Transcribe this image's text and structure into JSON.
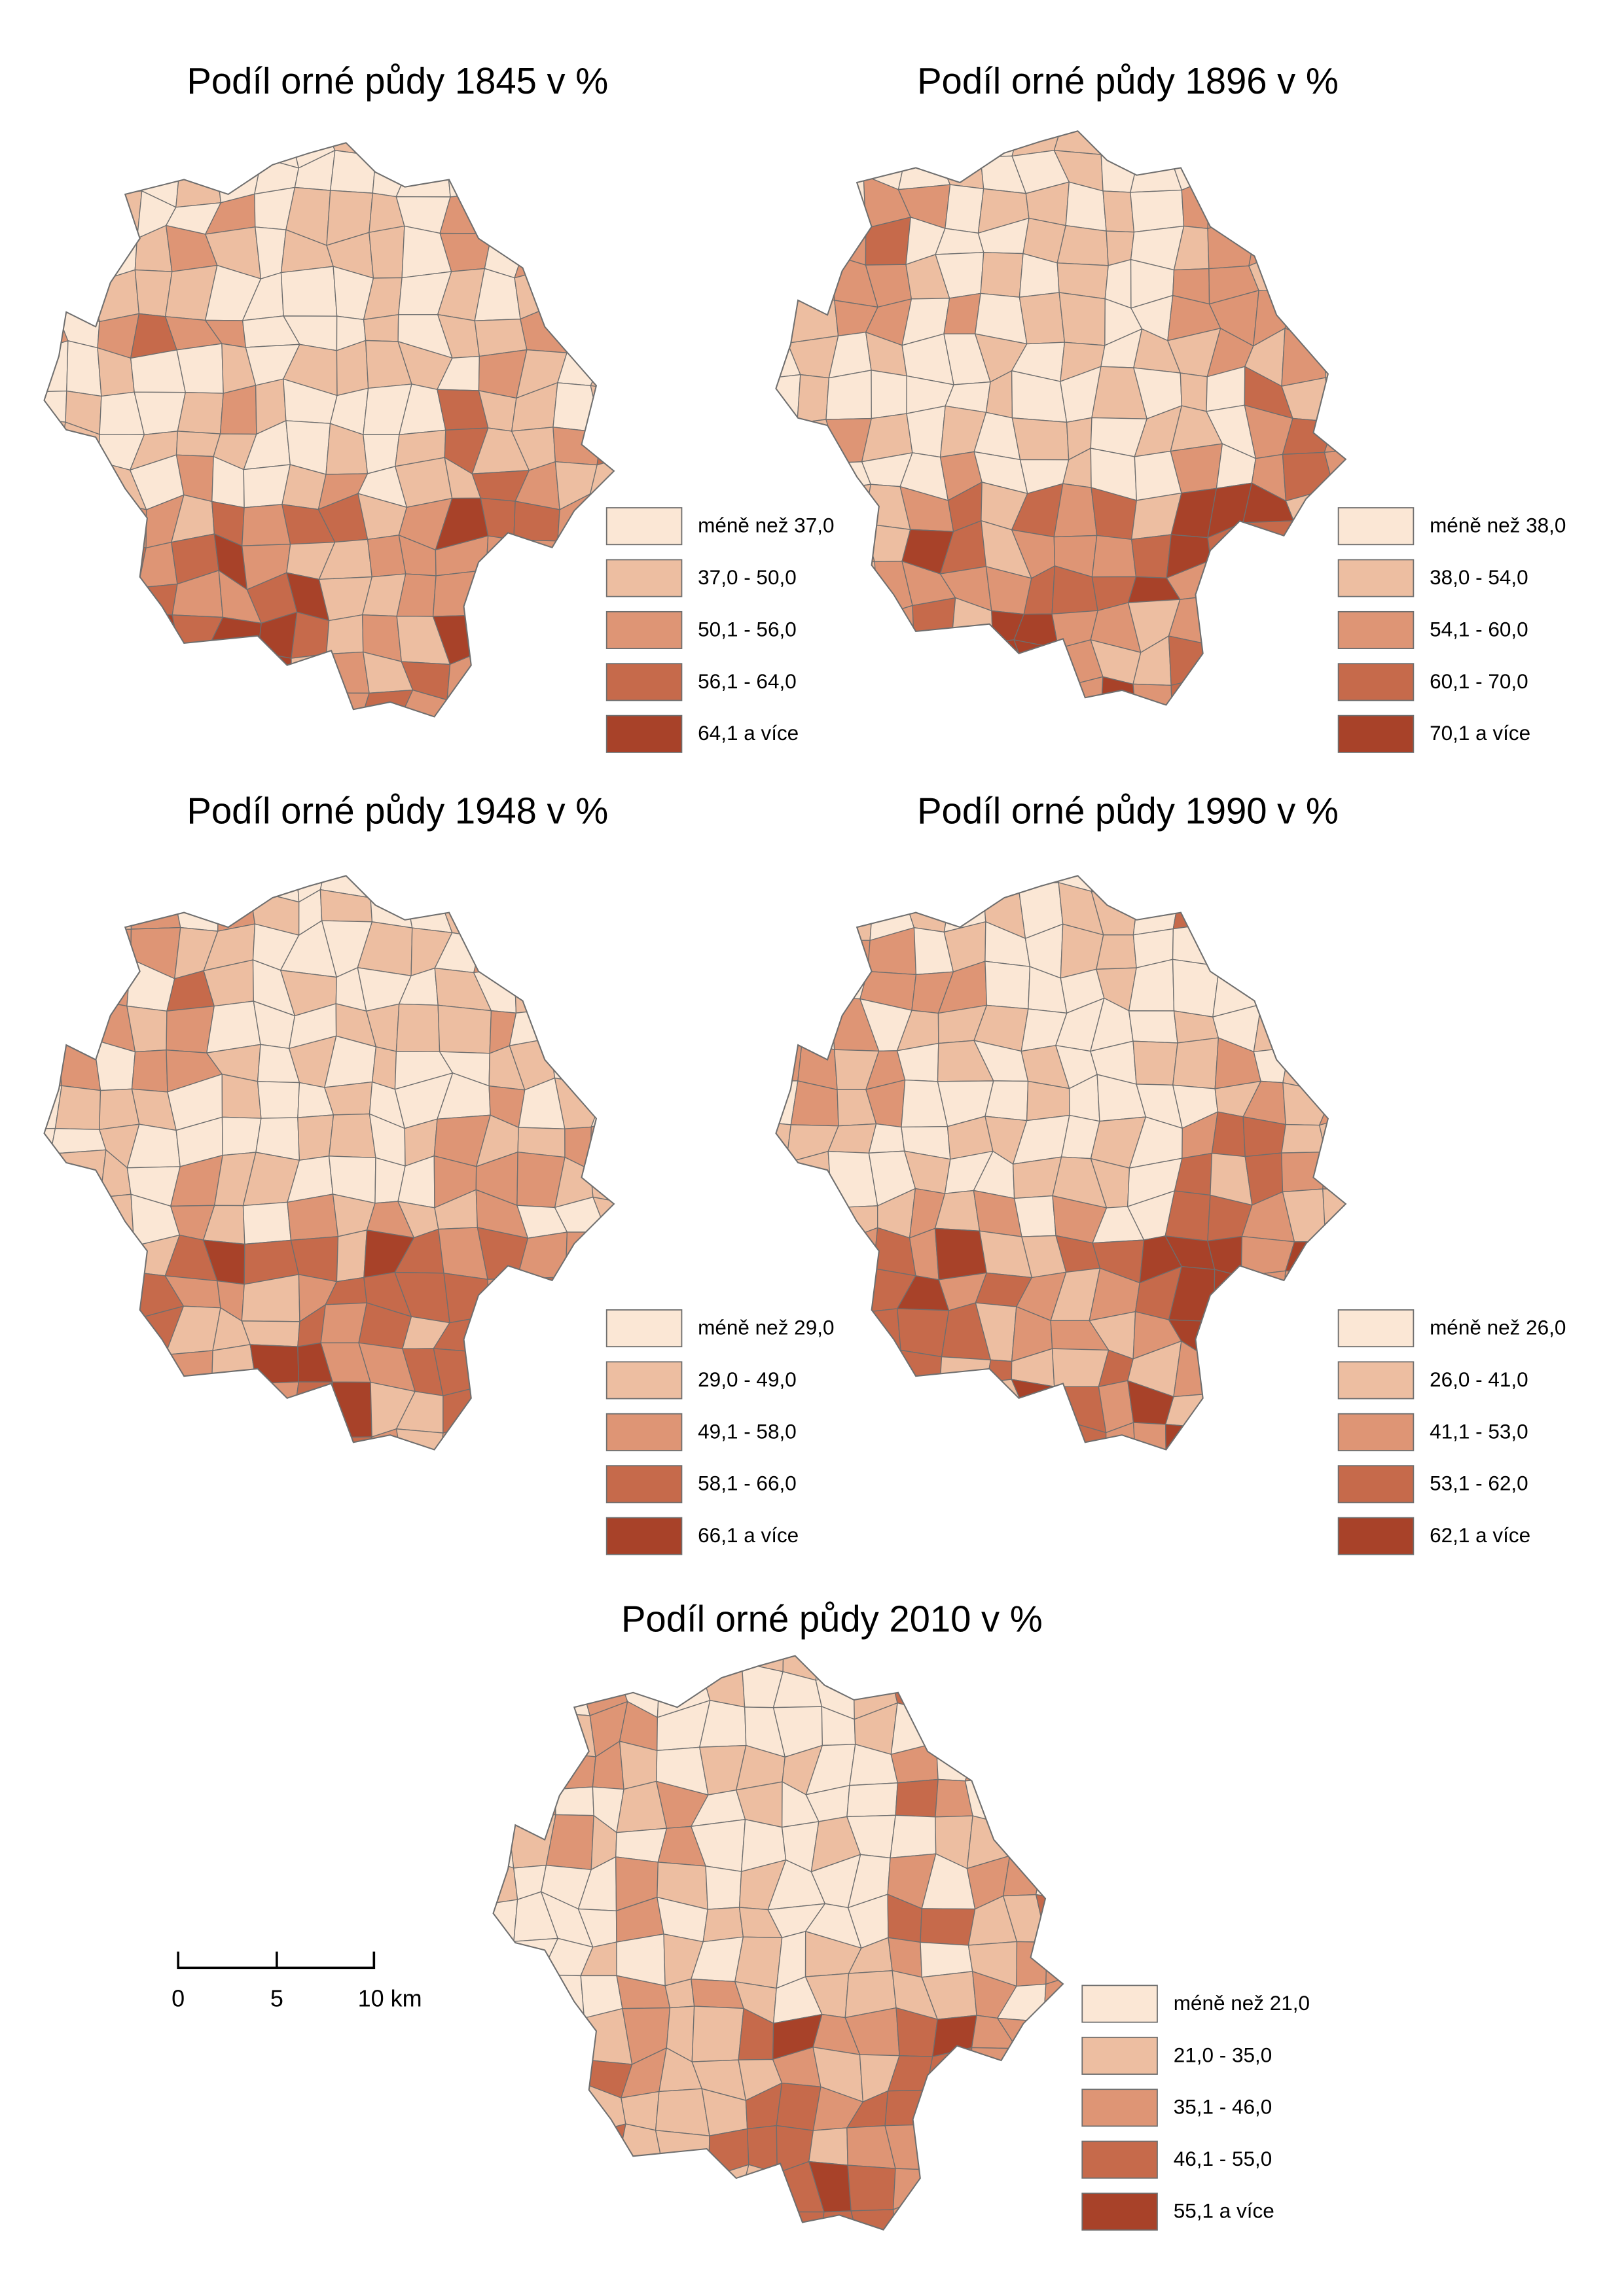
{
  "maps": [
    {
      "title": "Podíl orné půdy 1845 v %",
      "legend": [
        {
          "label": "méně než 37,0",
          "color": "#fbe7d5"
        },
        {
          "label": "37,0 - 50,0",
          "color": "#edbea1"
        },
        {
          "label": "50,1 - 56,0",
          "color": "#de9575"
        },
        {
          "label": "56,1 - 64,0",
          "color": "#c66a4b"
        },
        {
          "label": "64,1 a více",
          "color": "#a84229"
        }
      ]
    },
    {
      "title": "Podíl orné půdy 1896 v %",
      "legend": [
        {
          "label": "méně než 38,0",
          "color": "#fbe7d5"
        },
        {
          "label": "38,0 - 54,0",
          "color": "#edbea1"
        },
        {
          "label": "54,1 - 60,0",
          "color": "#de9575"
        },
        {
          "label": "60,1 - 70,0",
          "color": "#c66a4b"
        },
        {
          "label": "70,1 a více",
          "color": "#a84229"
        }
      ]
    },
    {
      "title": "Podíl orné půdy 1948 v %",
      "legend": [
        {
          "label": "méně než 29,0",
          "color": "#fbe7d5"
        },
        {
          "label": "29,0 - 49,0",
          "color": "#edbea1"
        },
        {
          "label": "49,1 - 58,0",
          "color": "#de9575"
        },
        {
          "label": "58,1 - 66,0",
          "color": "#c66a4b"
        },
        {
          "label": "66,1 a více",
          "color": "#a84229"
        }
      ]
    },
    {
      "title": "Podíl orné půdy 1990 v %",
      "legend": [
        {
          "label": "méně než 26,0",
          "color": "#fbe7d5"
        },
        {
          "label": "26,0 - 41,0",
          "color": "#edbea1"
        },
        {
          "label": "41,1 - 53,0",
          "color": "#de9575"
        },
        {
          "label": "53,1 - 62,0",
          "color": "#c66a4b"
        },
        {
          "label": "62,1 a více",
          "color": "#a84229"
        }
      ]
    },
    {
      "title": "Podíl orné půdy 2010 v %",
      "legend": [
        {
          "label": "méně než 21,0",
          "color": "#fbe7d5"
        },
        {
          "label": "21,0 - 35,0",
          "color": "#edbea1"
        },
        {
          "label": "35,1 - 46,0",
          "color": "#de9575"
        },
        {
          "label": "46,1 - 55,0",
          "color": "#c66a4b"
        },
        {
          "label": "55,1 a více",
          "color": "#a84229"
        }
      ]
    }
  ],
  "scale_bar": {
    "labels": [
      "0",
      "5",
      "10 km"
    ]
  }
}
